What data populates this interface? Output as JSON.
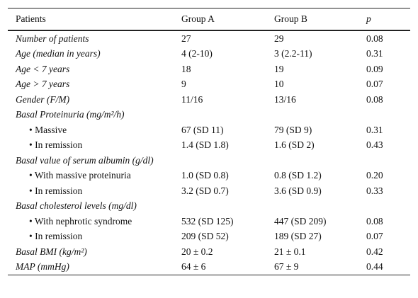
{
  "table": {
    "header": [
      "Patients",
      "Group A",
      "Group B",
      "p"
    ],
    "rows": [
      {
        "label": "Number of patients",
        "values": [
          "27",
          "29",
          "0.08"
        ]
      },
      {
        "label": "Age (median in years)",
        "values": [
          "4 (2-10)",
          "3 (2.2-11)",
          "0.31"
        ]
      },
      {
        "label": "Age < 7 years",
        "values": [
          "18",
          "19",
          "0.09"
        ]
      },
      {
        "label": "Age > 7 years",
        "values": [
          "9",
          "10",
          "0.07"
        ]
      },
      {
        "label": "Gender (F/M)",
        "values": [
          "11/16",
          "13/16",
          "0.08"
        ]
      },
      {
        "label": "Basal Proteinuria (mg/m²/h)",
        "items": [
          {
            "label": "Massive",
            "values": [
              "67 (SD 11)",
              "79 (SD 9)",
              "0.31"
            ]
          },
          {
            "label": "In remission",
            "values": [
              "1.4 (SD 1.8)",
              "1.6 (SD 2)",
              "0.43"
            ]
          }
        ]
      },
      {
        "label": "Basal value of serum albumin (g/dl)",
        "items": [
          {
            "label": "With massive proteinuria",
            "values": [
              "1.0 (SD 0.8)",
              "0.8 (SD 1.2)",
              "0.20"
            ]
          },
          {
            "label": "In remission",
            "values": [
              "3.2 (SD 0.7)",
              "3.6 (SD 0.9)",
              "0.33"
            ]
          }
        ]
      },
      {
        "label": "Basal cholesterol levels (mg/dl)",
        "items": [
          {
            "label": "With nephrotic syndrome",
            "values": [
              "532 (SD 125)",
              "447 (SD 209)",
              "0.08"
            ]
          },
          {
            "label": "In remission",
            "values": [
              "209 (SD 52)",
              "189 (SD 27)",
              "0.07"
            ]
          }
        ]
      },
      {
        "label": "Basal BMI (kg/m²)",
        "values": [
          "20 ± 0.2",
          "21 ± 0.1",
          "0.42"
        ]
      },
      {
        "label": "MAP (mmHg)",
        "values": [
          "64 ± 6",
          "67 ± 9",
          "0.44"
        ]
      }
    ]
  }
}
